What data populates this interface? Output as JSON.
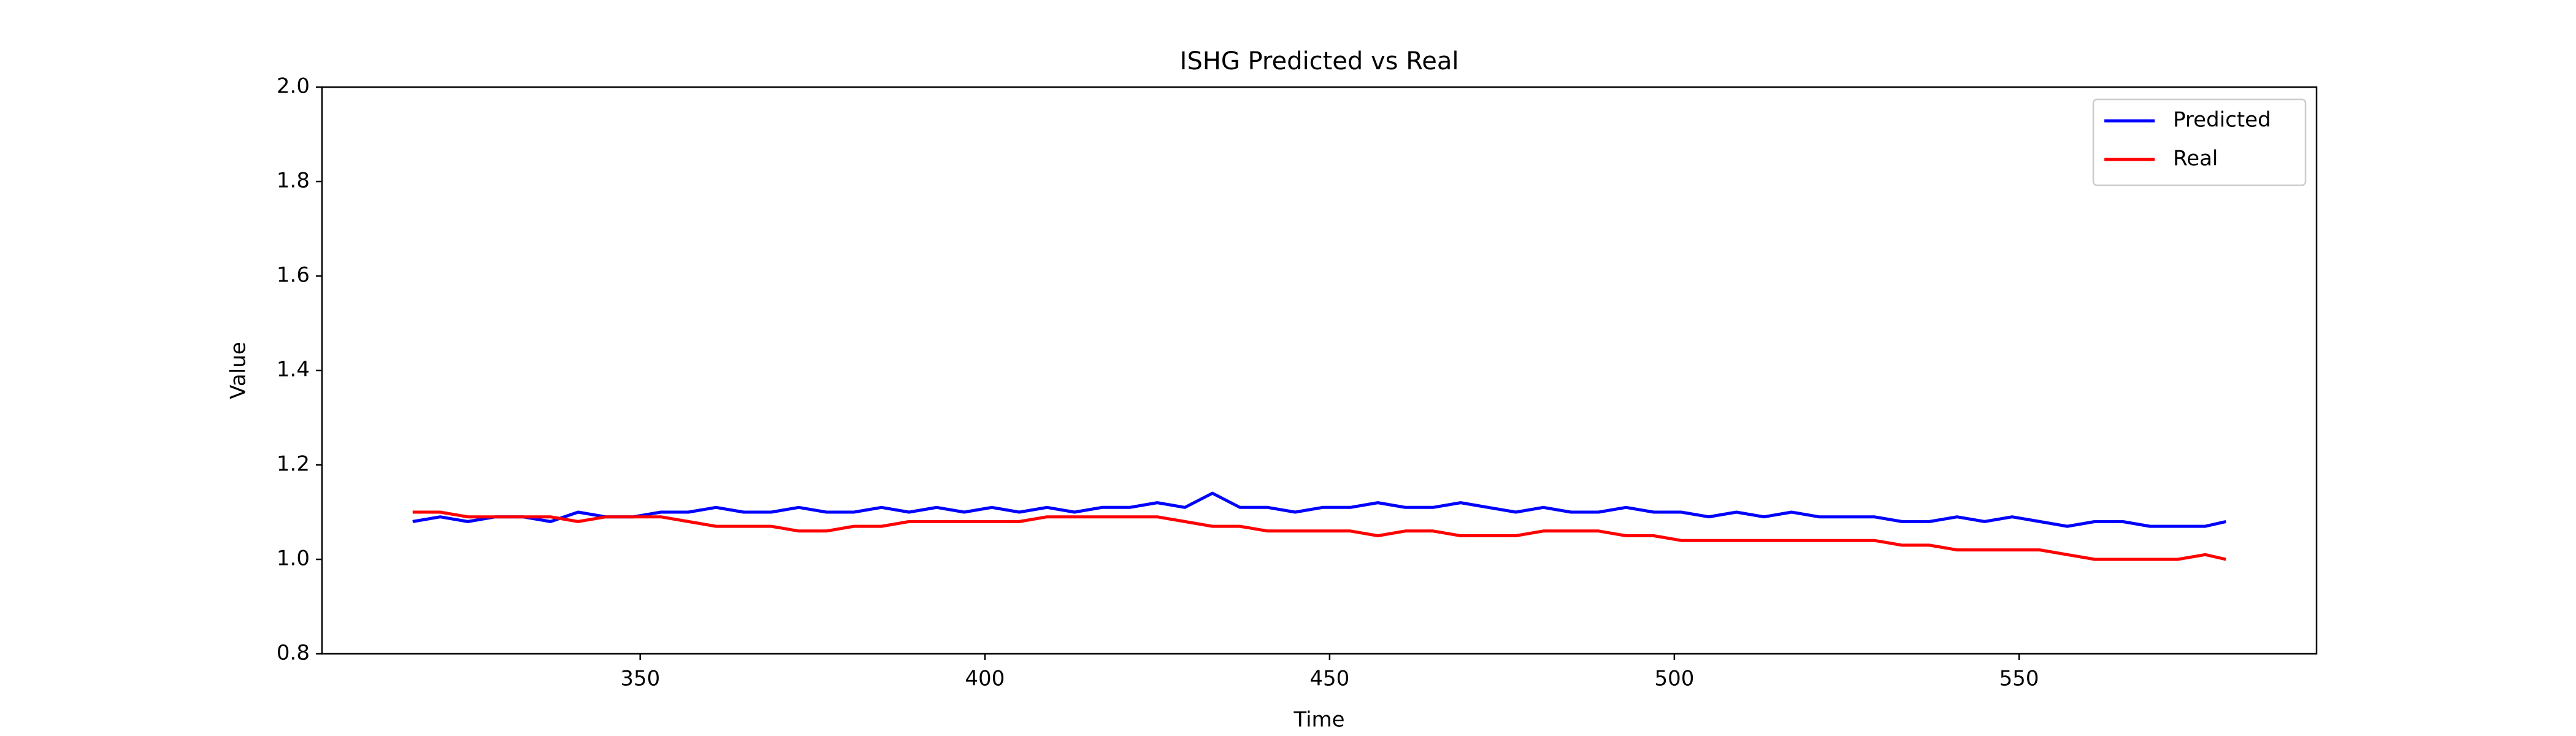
{
  "chart_data": {
    "type": "line",
    "title": "ISHG Predicted vs Real",
    "xlabel": "Time",
    "ylabel": "Value",
    "x": [
      317,
      321,
      325,
      329,
      333,
      337,
      341,
      345,
      349,
      353,
      357,
      361,
      365,
      369,
      373,
      377,
      381,
      385,
      389,
      393,
      397,
      401,
      405,
      409,
      413,
      417,
      421,
      425,
      429,
      433,
      437,
      441,
      445,
      449,
      453,
      457,
      461,
      465,
      469,
      473,
      477,
      481,
      485,
      489,
      493,
      497,
      501,
      505,
      509,
      513,
      517,
      521,
      525,
      529,
      533,
      537,
      541,
      545,
      549,
      553,
      557,
      561,
      565,
      569,
      573,
      577,
      580
    ],
    "series": [
      {
        "name": "Predicted",
        "color": "#0000ff",
        "values": [
          1.08,
          1.09,
          1.08,
          1.09,
          1.09,
          1.08,
          1.1,
          1.09,
          1.09,
          1.1,
          1.1,
          1.11,
          1.1,
          1.1,
          1.11,
          1.1,
          1.1,
          1.11,
          1.1,
          1.11,
          1.1,
          1.11,
          1.1,
          1.11,
          1.1,
          1.11,
          1.11,
          1.12,
          1.11,
          1.14,
          1.11,
          1.11,
          1.1,
          1.11,
          1.11,
          1.12,
          1.11,
          1.11,
          1.12,
          1.11,
          1.1,
          1.11,
          1.1,
          1.1,
          1.11,
          1.1,
          1.1,
          1.09,
          1.1,
          1.09,
          1.1,
          1.09,
          1.09,
          1.09,
          1.08,
          1.08,
          1.09,
          1.08,
          1.09,
          1.08,
          1.07,
          1.08,
          1.08,
          1.07,
          1.07,
          1.07,
          1.08
        ]
      },
      {
        "name": "Real",
        "color": "#ff0000",
        "values": [
          1.1,
          1.1,
          1.09,
          1.09,
          1.09,
          1.09,
          1.08,
          1.09,
          1.09,
          1.09,
          1.08,
          1.07,
          1.07,
          1.07,
          1.06,
          1.06,
          1.07,
          1.07,
          1.08,
          1.08,
          1.08,
          1.08,
          1.08,
          1.09,
          1.09,
          1.09,
          1.09,
          1.09,
          1.08,
          1.07,
          1.07,
          1.06,
          1.06,
          1.06,
          1.06,
          1.05,
          1.06,
          1.06,
          1.05,
          1.05,
          1.05,
          1.06,
          1.06,
          1.06,
          1.05,
          1.05,
          1.04,
          1.04,
          1.04,
          1.04,
          1.04,
          1.04,
          1.04,
          1.04,
          1.03,
          1.03,
          1.02,
          1.02,
          1.02,
          1.02,
          1.01,
          1.0,
          1.0,
          1.0,
          1.0,
          1.01,
          1.0
        ]
      }
    ],
    "xlim": [
      303.85,
      593.15
    ],
    "xticks": [
      350,
      400,
      450,
      500,
      550
    ],
    "ylim": [
      0.8,
      2.0
    ],
    "yticks": [
      0.8,
      {
        "value": 1.0,
        "label": "1.0"
      },
      1.2,
      1.4,
      1.6,
      1.8,
      {
        "value": 2.0,
        "label": "2.0"
      }
    ],
    "legend": "upper right"
  }
}
